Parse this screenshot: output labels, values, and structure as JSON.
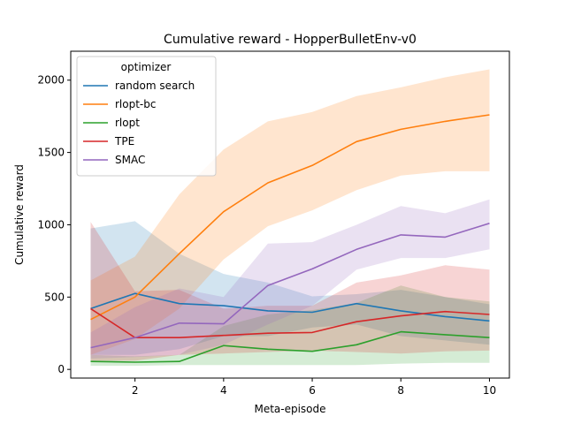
{
  "chart_data": {
    "type": "line",
    "title": "Cumulative reward - HopperBulletEnv-v0",
    "xlabel": "Meta-episode",
    "ylabel": "Cumulative reward",
    "xlim": [
      0.55,
      10.45
    ],
    "ylim": [
      -60,
      2200
    ],
    "xticks": [
      2,
      4,
      6,
      8,
      10
    ],
    "yticks": [
      0,
      500,
      1000,
      1500,
      2000
    ],
    "grid": false,
    "legend": {
      "title": "optimizer",
      "placement": "top-left"
    },
    "x": [
      1,
      2,
      3,
      4,
      5,
      6,
      7,
      8,
      9,
      10
    ],
    "series": [
      {
        "name": "random search",
        "color": "#1f77b4",
        "values": [
          420,
          525,
          455,
          440,
          405,
          395,
          455,
          405,
          365,
          335
        ],
        "lower": [
          100,
          100,
          140,
          230,
          230,
          290,
          310,
          230,
          200,
          170
        ],
        "upper": [
          975,
          1025,
          800,
          660,
          600,
          505,
          520,
          550,
          500,
          450
        ]
      },
      {
        "name": "rlopt-bc",
        "color": "#ff7f0e",
        "values": [
          345,
          500,
          800,
          1090,
          1290,
          1410,
          1575,
          1660,
          1715,
          1760
        ],
        "lower": [
          100,
          210,
          420,
          760,
          990,
          1100,
          1240,
          1340,
          1370,
          1370
        ],
        "upper": [
          615,
          780,
          1210,
          1520,
          1715,
          1780,
          1890,
          1950,
          2020,
          2075
        ]
      },
      {
        "name": "rlopt",
        "color": "#2ca02c",
        "values": [
          55,
          50,
          55,
          165,
          140,
          125,
          170,
          260,
          240,
          220
        ],
        "lower": [
          25,
          25,
          30,
          30,
          30,
          30,
          30,
          40,
          45,
          45
        ],
        "upper": [
          100,
          90,
          100,
          300,
          380,
          410,
          460,
          580,
          500,
          470
        ]
      },
      {
        "name": "TPE",
        "color": "#d62728",
        "values": [
          420,
          220,
          220,
          235,
          250,
          255,
          330,
          370,
          400,
          380
        ],
        "lower": [
          60,
          60,
          100,
          110,
          120,
          130,
          120,
          110,
          125,
          130
        ],
        "upper": [
          1020,
          540,
          550,
          420,
          440,
          440,
          600,
          650,
          720,
          690
        ]
      },
      {
        "name": "SMAC",
        "color": "#9467bd",
        "values": [
          150,
          220,
          320,
          315,
          580,
          695,
          830,
          930,
          915,
          1010
        ],
        "lower": [
          75,
          85,
          100,
          170,
          310,
          440,
          690,
          770,
          770,
          830
        ],
        "upper": [
          255,
          430,
          560,
          500,
          870,
          880,
          1000,
          1130,
          1080,
          1175
        ]
      }
    ]
  }
}
